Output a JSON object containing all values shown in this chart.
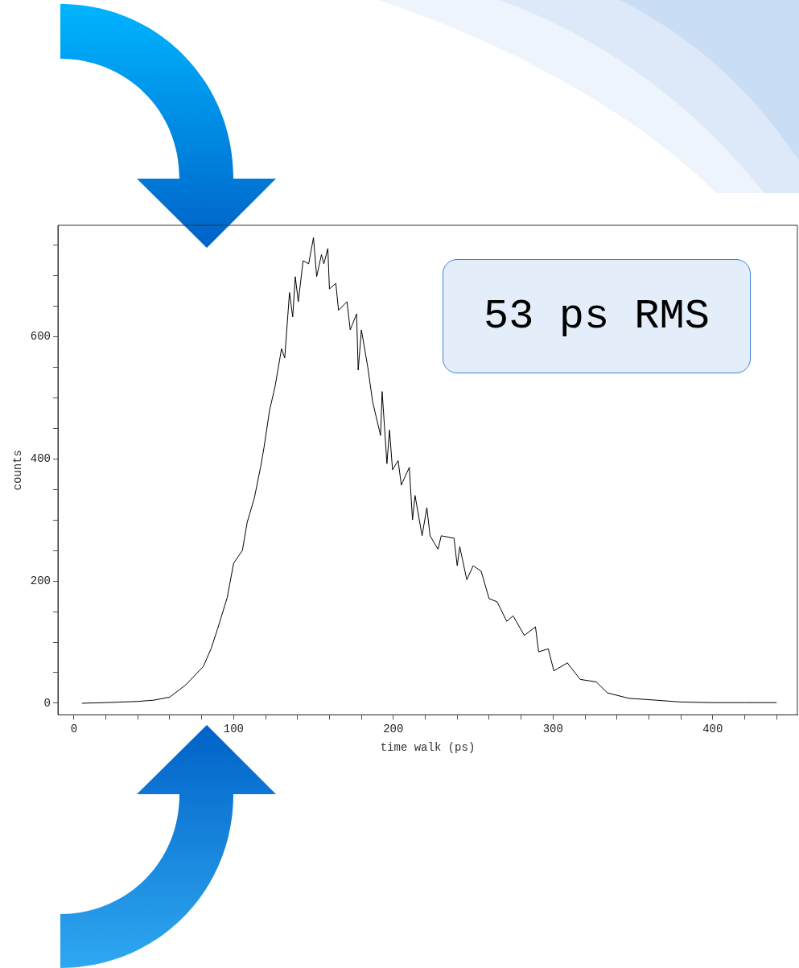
{
  "chart_data": {
    "type": "line",
    "xlabel": "time walk (ps)",
    "ylabel": "counts",
    "color": "#000000",
    "x": [
      5,
      20,
      40,
      50,
      60,
      70,
      81,
      86,
      90,
      96,
      100,
      105.5,
      108.5,
      113,
      117,
      119,
      122.5,
      126,
      130,
      132,
      135,
      137,
      138.6,
      140.5,
      143.5,
      147,
      150,
      152,
      155,
      156.5,
      159,
      160,
      164,
      165.7,
      171,
      173,
      177,
      178,
      180,
      184,
      187,
      192,
      193,
      196,
      197.6,
      199.5,
      203,
      205,
      210,
      212,
      213.6,
      218,
      221,
      223,
      228,
      230,
      238,
      240,
      241.6,
      246,
      250,
      255,
      260,
      265,
      271,
      275,
      282,
      289,
      291,
      297,
      300.5,
      309,
      317,
      327,
      334,
      347.5,
      364.6,
      380,
      400,
      420,
      440
    ],
    "values": [
      0,
      1,
      3,
      5,
      10,
      30,
      60,
      90,
      122,
      173,
      229,
      250,
      296,
      336,
      388,
      418,
      479,
      519,
      580,
      565,
      672,
      632,
      698,
      657,
      724,
      719,
      762,
      698,
      734,
      719,
      744,
      678,
      687,
      643,
      657,
      611,
      637,
      545,
      611,
      550,
      494,
      438,
      510,
      392,
      447,
      382,
      397,
      357,
      386,
      300,
      340,
      274,
      320,
      274,
      252,
      274,
      270,
      225,
      256,
      202,
      225,
      216,
      171,
      166,
      134,
      143,
      111,
      125,
      84,
      89,
      53,
      66,
      39,
      35,
      17,
      8,
      5,
      2,
      1,
      1,
      1
    ],
    "xlim": [
      -10,
      453
    ],
    "ylim": [
      -19,
      782
    ],
    "xticks": [
      0,
      {
        "value": 20,
        "label": null
      },
      {
        "value": 40,
        "label": null
      },
      {
        "value": 60,
        "label": null
      },
      {
        "value": 80,
        "label": null
      },
      100,
      {
        "value": 120,
        "label": null
      },
      {
        "value": 140,
        "label": null
      },
      {
        "value": 160,
        "label": null
      },
      {
        "value": 180,
        "label": null
      },
      200,
      {
        "value": 220,
        "label": null
      },
      {
        "value": 240,
        "label": null
      },
      {
        "value": 260,
        "label": null
      },
      {
        "value": 280,
        "label": null
      },
      300,
      {
        "value": 320,
        "label": null
      },
      {
        "value": 340,
        "label": null
      },
      {
        "value": 360,
        "label": null
      },
      {
        "value": 380,
        "label": null
      },
      400,
      {
        "value": 420,
        "label": null
      },
      {
        "value": 440,
        "label": null
      }
    ],
    "yticks": [
      0,
      {
        "value": 50,
        "label": null
      },
      {
        "value": 100,
        "label": null
      },
      {
        "value": 150,
        "label": null
      },
      200,
      {
        "value": 250,
        "label": null
      },
      {
        "value": 300,
        "label": null
      },
      {
        "value": 350,
        "label": null
      },
      400,
      {
        "value": 450,
        "label": null
      },
      {
        "value": 500,
        "label": null
      },
      {
        "value": 550,
        "label": null
      },
      600,
      {
        "value": 650,
        "label": null
      },
      {
        "value": 700,
        "label": null
      },
      {
        "value": 750,
        "label": null
      }
    ],
    "annotations": [
      "53 ps RMS"
    ],
    "grid": false,
    "legend": false,
    "marker": "none",
    "line_style": "solid"
  }
}
